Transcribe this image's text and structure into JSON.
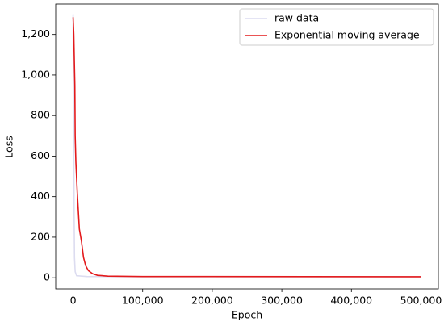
{
  "chart_data": {
    "type": "line",
    "x_label": "Epoch",
    "y_label": "Loss",
    "legend": "upper right",
    "xlim": [
      -25000,
      525000
    ],
    "ylim": [
      -55,
      1350
    ],
    "xticks": [
      0,
      {
        "value": 100000,
        "label": "100,000"
      },
      {
        "value": 200000,
        "label": "200,000"
      },
      {
        "value": 300000,
        "label": "300,000"
      },
      {
        "value": 400000,
        "label": "400,000"
      },
      {
        "value": 500000,
        "label": "500,000"
      }
    ],
    "yticks": [
      0,
      200,
      400,
      600,
      800,
      {
        "value": 1000,
        "label": "1,000"
      },
      {
        "value": 1200,
        "label": "1,200"
      }
    ],
    "series": [
      {
        "name": "raw data",
        "color": "#dcdcf0",
        "x": [
          0,
          500,
          1000,
          1500,
          2000,
          3000,
          5000,
          20000,
          100000,
          500000
        ],
        "values": [
          1300,
          900,
          600,
          300,
          100,
          30,
          10,
          6,
          5,
          5
        ]
      },
      {
        "name": "Exponential moving average",
        "color": "#e31a1c",
        "x": [
          0,
          1000,
          2500,
          3000,
          4000,
          6000,
          9000,
          12000,
          15000,
          18000,
          22000,
          28000,
          35000,
          50000,
          100000,
          500000
        ],
        "values": [
          1285,
          1200,
          950,
          700,
          570,
          420,
          240,
          180,
          100,
          60,
          35,
          20,
          12,
          8,
          6,
          5
        ]
      }
    ]
  }
}
